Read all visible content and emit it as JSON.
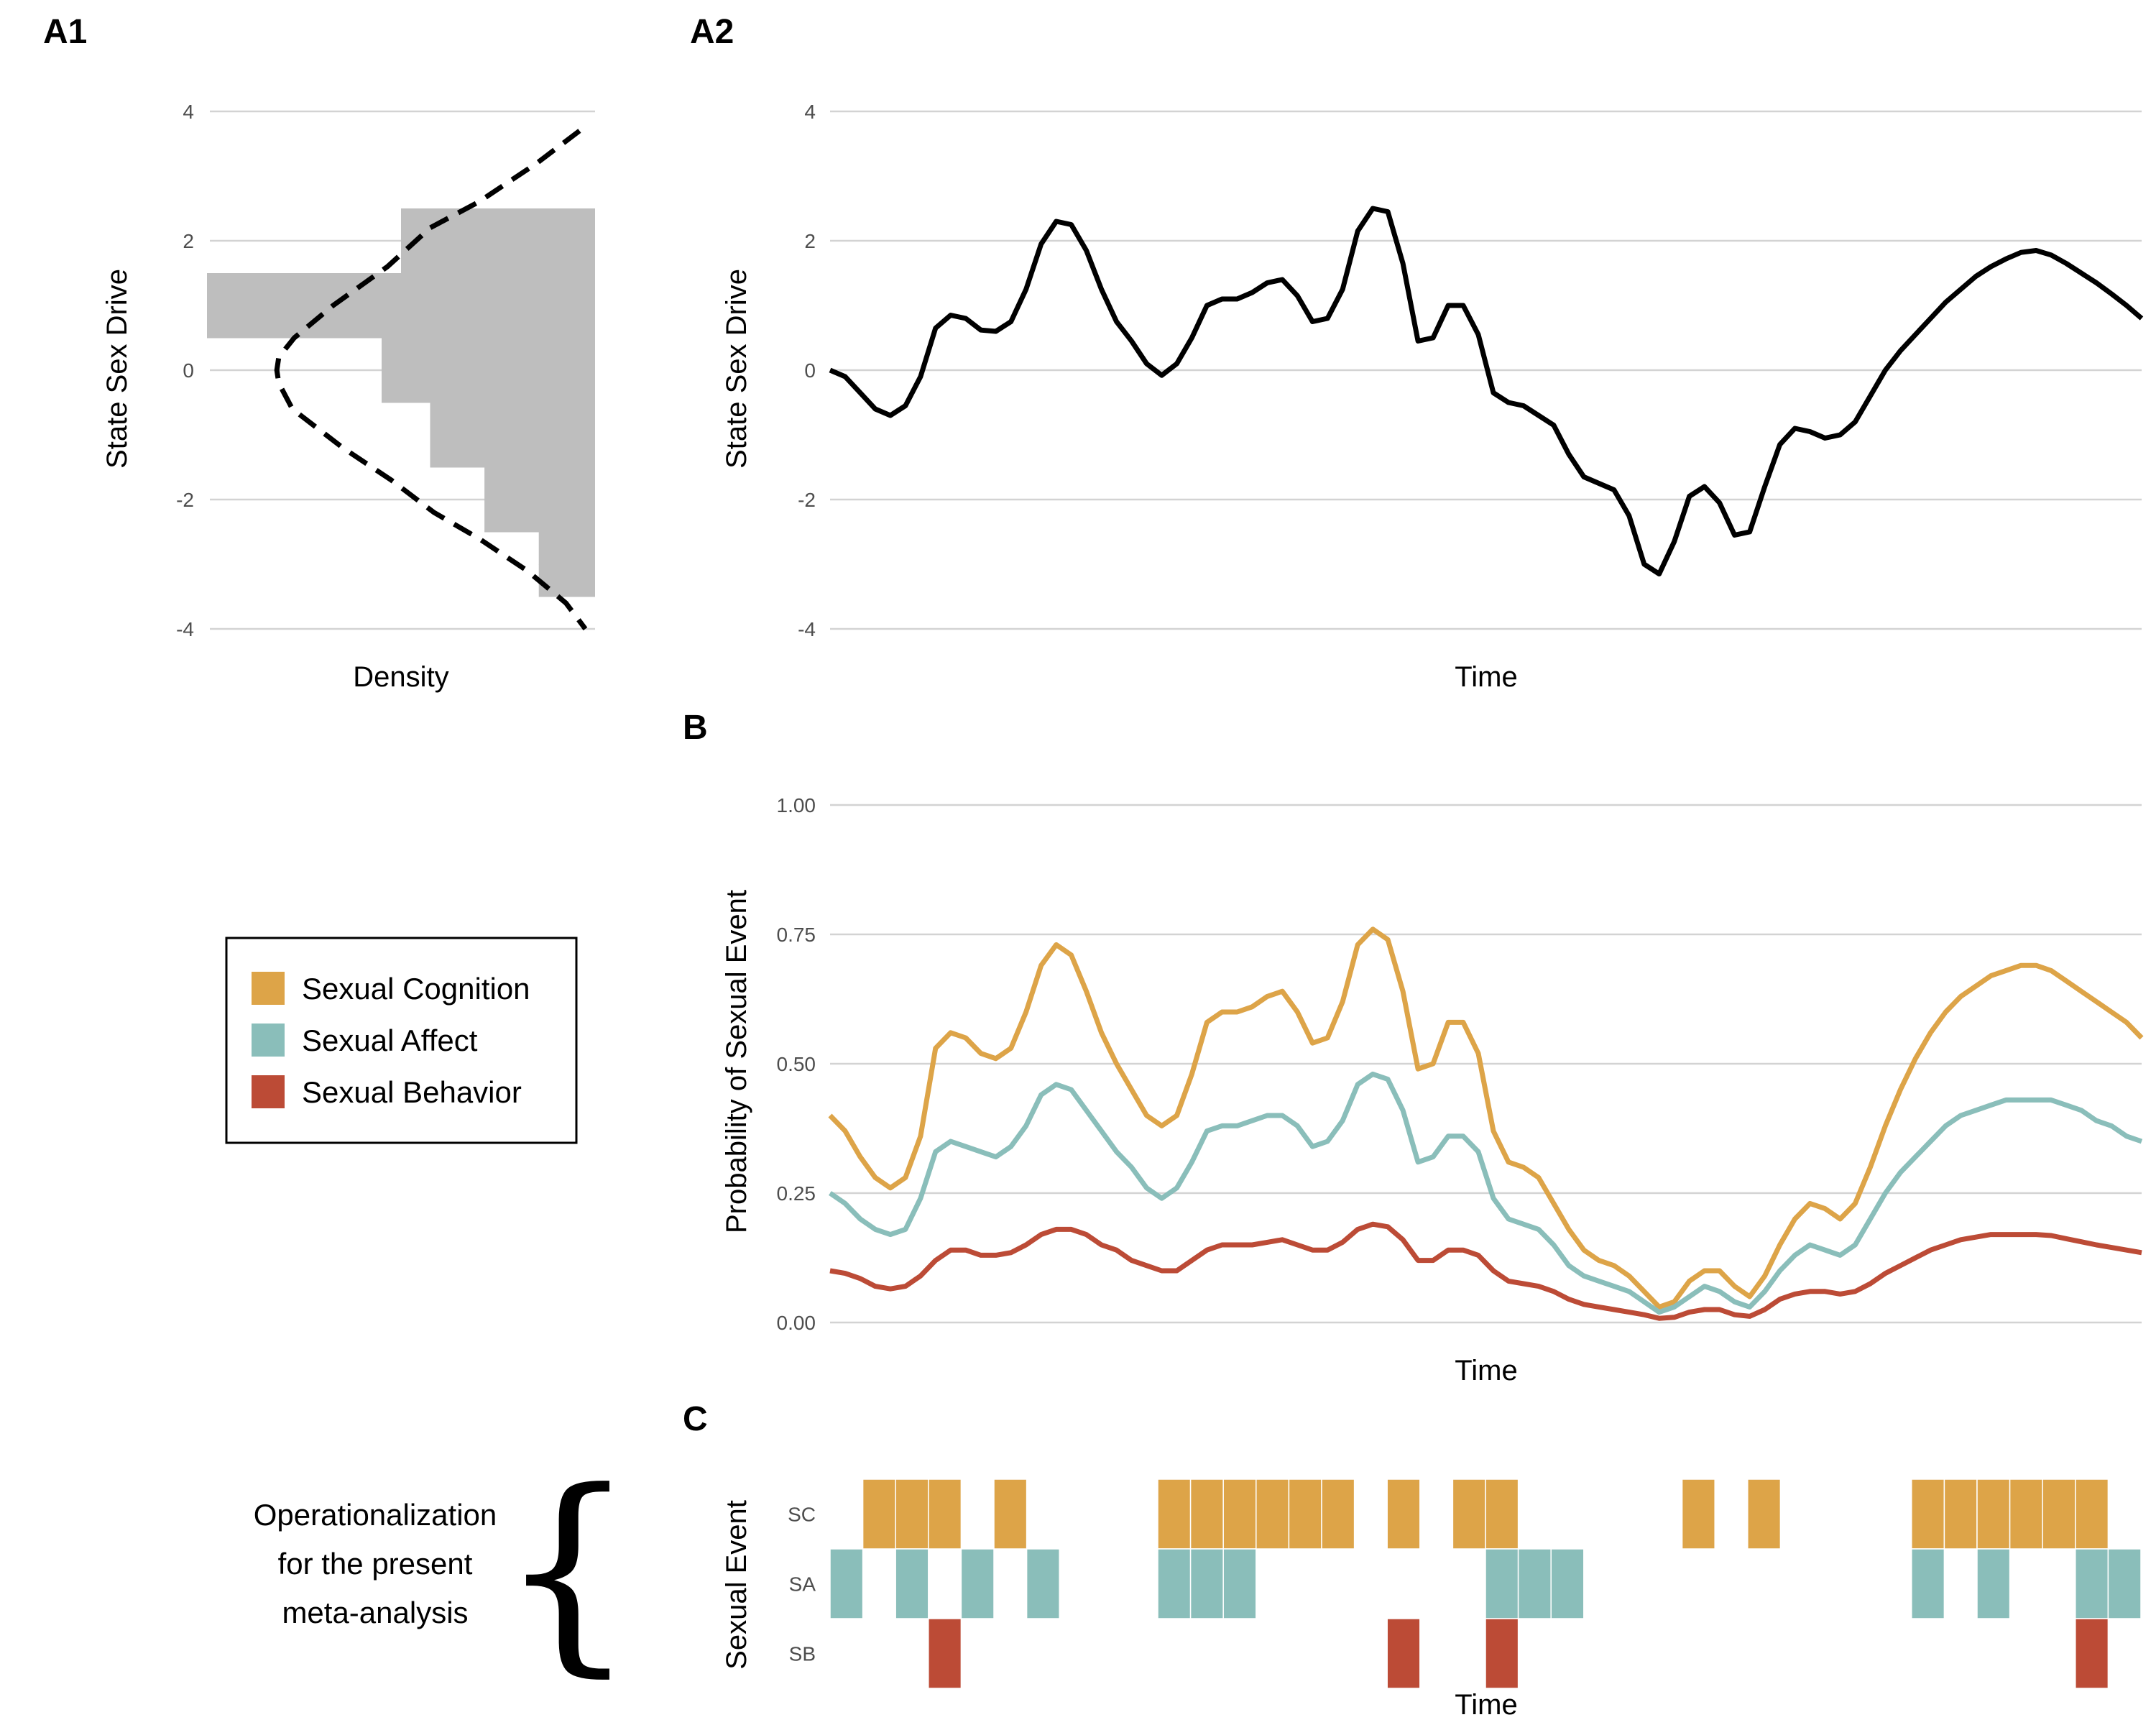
{
  "panels": {
    "a1": "A1",
    "a2": "A2",
    "b": "B",
    "c": "C"
  },
  "colors": {
    "sc": "#DDA448",
    "sa": "#8ABEBA",
    "sb": "#BC4B36",
    "line": "#000000",
    "hist": "#BEBEBE"
  },
  "legend": {
    "items": [
      {
        "label": "Sexual Cognition",
        "color": "#DDA448"
      },
      {
        "label": "Sexual Affect",
        "color": "#8ABEBA"
      },
      {
        "label": "Sexual Behavior",
        "color": "#BC4B36"
      }
    ]
  },
  "note": {
    "lines": [
      "Operationalization",
      "for the present",
      "meta-analysis"
    ],
    "brace": "{"
  },
  "chart_data": [
    {
      "id": "A1",
      "type": "bar",
      "orientation": "horizontal",
      "xlabel": "Density",
      "ylabel": "State Sex Drive",
      "ylim": [
        -4.4,
        4.4
      ],
      "yticks": [
        "4",
        "2",
        "0",
        "-2",
        "-4"
      ],
      "yticks_values": [
        4,
        2,
        0,
        -2,
        -4
      ],
      "grid": true,
      "histogram_bins": [
        {
          "from": 2.0,
          "to": 2.5,
          "density": 1.0
        },
        {
          "from": 1.5,
          "to": 2.0,
          "density": 1.0
        },
        {
          "from": 1.0,
          "to": 1.5,
          "density": 2.0
        },
        {
          "from": 0.5,
          "to": 1.0,
          "density": 2.0
        },
        {
          "from": 0.0,
          "to": 0.5,
          "density": 1.1
        },
        {
          "from": -0.5,
          "to": 0.0,
          "density": 1.1
        },
        {
          "from": -1.0,
          "to": -0.5,
          "density": 0.85
        },
        {
          "from": -1.5,
          "to": -1.0,
          "density": 0.85
        },
        {
          "from": -2.0,
          "to": -1.5,
          "density": 0.57
        },
        {
          "from": -2.5,
          "to": -2.0,
          "density": 0.57
        },
        {
          "from": -3.0,
          "to": -2.5,
          "density": 0.29
        },
        {
          "from": -3.5,
          "to": -3.0,
          "density": 0.29
        }
      ],
      "density_curve": {
        "style": "dashed",
        "y": [
          3.7,
          3.2,
          2.6,
          2.2,
          1.6,
          1.0,
          0.5,
          0.2,
          0.0,
          -0.2,
          -0.6,
          -1.2,
          -1.7,
          -2.2,
          -2.6,
          -3.1,
          -3.6,
          -4.0
        ],
        "density": [
          0.08,
          0.3,
          0.6,
          0.85,
          1.07,
          1.35,
          1.55,
          1.63,
          1.64,
          1.63,
          1.56,
          1.3,
          1.05,
          0.83,
          0.6,
          0.35,
          0.15,
          0.05
        ]
      }
    },
    {
      "id": "A2",
      "type": "line",
      "xlabel": "Time",
      "ylabel": "State Sex Drive",
      "ylim": [
        -4.4,
        4.4
      ],
      "yticks": [
        "4",
        "2",
        "0",
        "-2",
        "-4"
      ],
      "yticks_values": [
        4,
        2,
        0,
        -2,
        -4
      ],
      "grid": true,
      "series": [
        {
          "color": "#000000",
          "y": [
            0.0,
            -0.1,
            -0.35,
            -0.6,
            -0.7,
            -0.55,
            -0.1,
            0.65,
            0.85,
            0.8,
            0.62,
            0.6,
            0.75,
            1.25,
            1.95,
            2.3,
            2.25,
            1.85,
            1.25,
            0.75,
            0.45,
            0.1,
            -0.08,
            0.1,
            0.5,
            1.0,
            1.1,
            1.1,
            1.2,
            1.35,
            1.4,
            1.15,
            0.75,
            0.8,
            1.25,
            2.15,
            2.5,
            2.45,
            1.65,
            0.45,
            0.5,
            1.0,
            1.0,
            0.55,
            -0.35,
            -0.5,
            -0.55,
            -0.7,
            -0.85,
            -1.3,
            -1.65,
            -1.75,
            -1.85,
            -2.25,
            -3.0,
            -3.15,
            -2.65,
            -1.95,
            -1.8,
            -2.05,
            -2.55,
            -2.5,
            -1.8,
            -1.15,
            -0.9,
            -0.95,
            -1.05,
            -1.0,
            -0.8,
            -0.4,
            0.0,
            0.3,
            0.55,
            0.8,
            1.05,
            1.25,
            1.45,
            1.6,
            1.72,
            1.82,
            1.85,
            1.78,
            1.65,
            1.5,
            1.35,
            1.18,
            1.0,
            0.8
          ]
        }
      ]
    },
    {
      "id": "B",
      "type": "line",
      "xlabel": "Time",
      "ylabel": "Probability of Sexual Event",
      "ylim": [
        0,
        1.0
      ],
      "yticks": [
        "1.00",
        "0.75",
        "0.50",
        "0.25",
        "0.00"
      ],
      "yticks_values": [
        1.0,
        0.75,
        0.5,
        0.25,
        0.0
      ],
      "grid": true,
      "series": [
        {
          "name": "Sexual Cognition",
          "color": "#DDA448",
          "y": [
            0.4,
            0.37,
            0.32,
            0.28,
            0.26,
            0.28,
            0.36,
            0.53,
            0.56,
            0.55,
            0.52,
            0.51,
            0.53,
            0.6,
            0.69,
            0.73,
            0.71,
            0.64,
            0.56,
            0.5,
            0.45,
            0.4,
            0.38,
            0.4,
            0.48,
            0.58,
            0.6,
            0.6,
            0.61,
            0.63,
            0.64,
            0.6,
            0.54,
            0.55,
            0.62,
            0.73,
            0.76,
            0.74,
            0.64,
            0.49,
            0.5,
            0.58,
            0.58,
            0.52,
            0.37,
            0.31,
            0.3,
            0.28,
            0.23,
            0.18,
            0.14,
            0.12,
            0.11,
            0.09,
            0.06,
            0.03,
            0.04,
            0.08,
            0.1,
            0.1,
            0.07,
            0.05,
            0.09,
            0.15,
            0.2,
            0.23,
            0.22,
            0.2,
            0.23,
            0.3,
            0.38,
            0.45,
            0.51,
            0.56,
            0.6,
            0.63,
            0.65,
            0.67,
            0.68,
            0.69,
            0.69,
            0.68,
            0.66,
            0.64,
            0.62,
            0.6,
            0.58,
            0.55
          ]
        },
        {
          "name": "Sexual Affect",
          "color": "#8ABEBA",
          "y": [
            0.25,
            0.23,
            0.2,
            0.18,
            0.17,
            0.18,
            0.24,
            0.33,
            0.35,
            0.34,
            0.33,
            0.32,
            0.34,
            0.38,
            0.44,
            0.46,
            0.45,
            0.41,
            0.37,
            0.33,
            0.3,
            0.26,
            0.24,
            0.26,
            0.31,
            0.37,
            0.38,
            0.38,
            0.39,
            0.4,
            0.4,
            0.38,
            0.34,
            0.35,
            0.39,
            0.46,
            0.48,
            0.47,
            0.41,
            0.31,
            0.32,
            0.36,
            0.36,
            0.33,
            0.24,
            0.2,
            0.19,
            0.18,
            0.15,
            0.11,
            0.09,
            0.08,
            0.07,
            0.06,
            0.04,
            0.02,
            0.03,
            0.05,
            0.07,
            0.06,
            0.04,
            0.03,
            0.06,
            0.1,
            0.13,
            0.15,
            0.14,
            0.13,
            0.15,
            0.2,
            0.25,
            0.29,
            0.32,
            0.35,
            0.38,
            0.4,
            0.41,
            0.42,
            0.43,
            0.43,
            0.43,
            0.43,
            0.42,
            0.41,
            0.39,
            0.38,
            0.36,
            0.35
          ]
        },
        {
          "name": "Sexual Behavior",
          "color": "#BC4B36",
          "y": [
            0.1,
            0.095,
            0.085,
            0.07,
            0.065,
            0.07,
            0.09,
            0.12,
            0.14,
            0.14,
            0.13,
            0.13,
            0.135,
            0.15,
            0.17,
            0.18,
            0.18,
            0.17,
            0.15,
            0.14,
            0.12,
            0.11,
            0.1,
            0.1,
            0.12,
            0.14,
            0.15,
            0.15,
            0.15,
            0.155,
            0.16,
            0.15,
            0.14,
            0.14,
            0.155,
            0.18,
            0.19,
            0.185,
            0.16,
            0.12,
            0.12,
            0.14,
            0.14,
            0.13,
            0.1,
            0.08,
            0.075,
            0.07,
            0.06,
            0.045,
            0.035,
            0.03,
            0.025,
            0.02,
            0.015,
            0.008,
            0.01,
            0.02,
            0.025,
            0.025,
            0.015,
            0.012,
            0.025,
            0.045,
            0.055,
            0.06,
            0.06,
            0.055,
            0.06,
            0.075,
            0.095,
            0.11,
            0.125,
            0.14,
            0.15,
            0.16,
            0.165,
            0.17,
            0.17,
            0.17,
            0.17,
            0.168,
            0.162,
            0.156,
            0.15,
            0.145,
            0.14,
            0.135
          ]
        }
      ]
    },
    {
      "id": "C",
      "type": "heatmap",
      "xlabel": "Time",
      "ylabel": "Sexual Event",
      "n_slots": 40,
      "rows": [
        {
          "label": "SC",
          "color": "#DDA448",
          "cells": [
            1,
            2,
            3,
            5,
            10,
            11,
            12,
            13,
            14,
            15,
            17,
            19,
            20,
            26,
            28,
            33,
            34,
            35,
            36,
            37,
            38
          ]
        },
        {
          "label": "SA",
          "color": "#8ABEBA",
          "cells": [
            0,
            2,
            4,
            6,
            10,
            11,
            12,
            20,
            21,
            22,
            33,
            35,
            38,
            39
          ]
        },
        {
          "label": "SB",
          "color": "#BC4B36",
          "cells": [
            3,
            17,
            20,
            38
          ]
        }
      ]
    }
  ]
}
